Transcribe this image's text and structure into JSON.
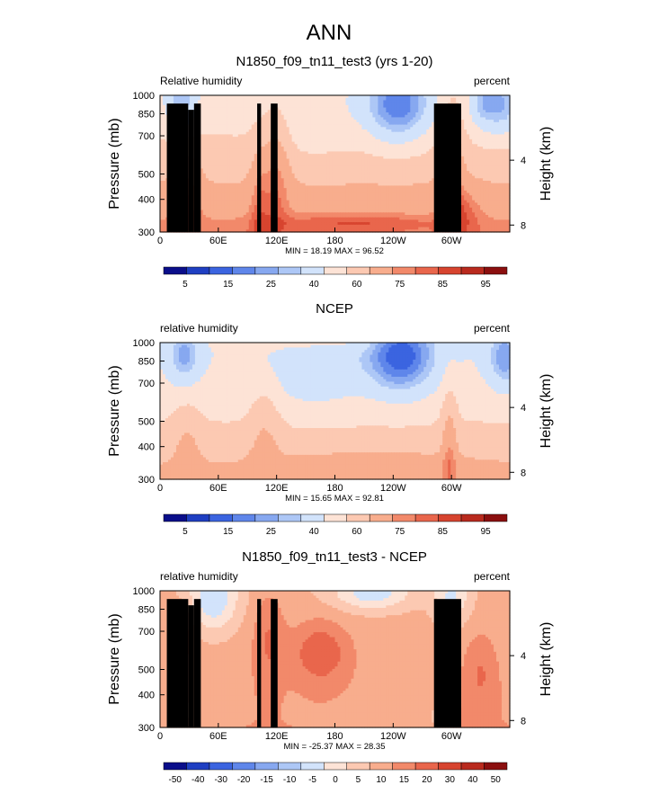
{
  "figure": {
    "title": "ANN"
  },
  "colors": {
    "scale": [
      "#0a0e8a",
      "#1f3fc2",
      "#3b64e0",
      "#5f86ea",
      "#87a8f0",
      "#adc7f6",
      "#d2e3fb",
      "#fde3d6",
      "#fcc9b2",
      "#f8ad8d",
      "#f2896a",
      "#e9664c",
      "#d7442f",
      "#b92a1e",
      "#8b0f0f"
    ],
    "topography": "#000000"
  },
  "chart_data": [
    {
      "type": "heatmap",
      "id": "model",
      "title": "N1850_f09_tn11_test3 (yrs 1-20)",
      "left_label": "Relative humidity",
      "right_label": "percent",
      "ylabel": "Pressure (mb)",
      "ylabel_right": "Height (km)",
      "x_range": [
        0,
        360
      ],
      "y_range": [
        300,
        1000
      ],
      "x_ticks": [
        "0",
        "60E",
        "120E",
        "180",
        "120W",
        "60W"
      ],
      "y_ticks": [
        "300",
        "400",
        "500",
        "700",
        "850",
        "1000"
      ],
      "height_ticks": [
        "8",
        "4"
      ],
      "colorbar_labels": [
        "5",
        "15",
        "25",
        "40",
        "60",
        "75",
        "85",
        "95"
      ],
      "min_label": "MIN =  18.19  MAX =  96.52",
      "min": 18.19,
      "max": 96.52
    },
    {
      "type": "heatmap",
      "id": "obs",
      "title": "NCEP",
      "left_label": "relative humidity",
      "right_label": "percent",
      "ylabel": "Pressure (mb)",
      "ylabel_right": "Height (km)",
      "x_range": [
        0,
        360
      ],
      "y_range": [
        300,
        1000
      ],
      "x_ticks": [
        "0",
        "60E",
        "120E",
        "180",
        "120W",
        "60W"
      ],
      "y_ticks": [
        "300",
        "400",
        "500",
        "700",
        "850",
        "1000"
      ],
      "height_ticks": [
        "8",
        "4"
      ],
      "colorbar_labels": [
        "5",
        "15",
        "25",
        "40",
        "60",
        "75",
        "85",
        "95"
      ],
      "min_label": "MIN =  15.65  MAX =  92.81",
      "min": 15.65,
      "max": 92.81
    },
    {
      "type": "heatmap",
      "id": "diff",
      "title": "N1850_f09_tn11_test3 - NCEP",
      "left_label": "relative humidity",
      "right_label": "percent",
      "ylabel": "Pressure (mb)",
      "ylabel_right": "Height (km)",
      "x_range": [
        0,
        360
      ],
      "y_range": [
        300,
        1000
      ],
      "x_ticks": [
        "0",
        "60E",
        "120E",
        "180",
        "120W",
        "60W"
      ],
      "y_ticks": [
        "300",
        "400",
        "500",
        "700",
        "850",
        "1000"
      ],
      "height_ticks": [
        "8",
        "4"
      ],
      "colorbar_labels": [
        "-50",
        "-40",
        "-30",
        "-20",
        "-15",
        "-10",
        "-5",
        "0",
        "5",
        "10",
        "15",
        "20",
        "30",
        "40",
        "50"
      ],
      "min_label": "MIN = -25.37  MAX =  28.35",
      "min": -25.37,
      "max": 28.35
    }
  ]
}
